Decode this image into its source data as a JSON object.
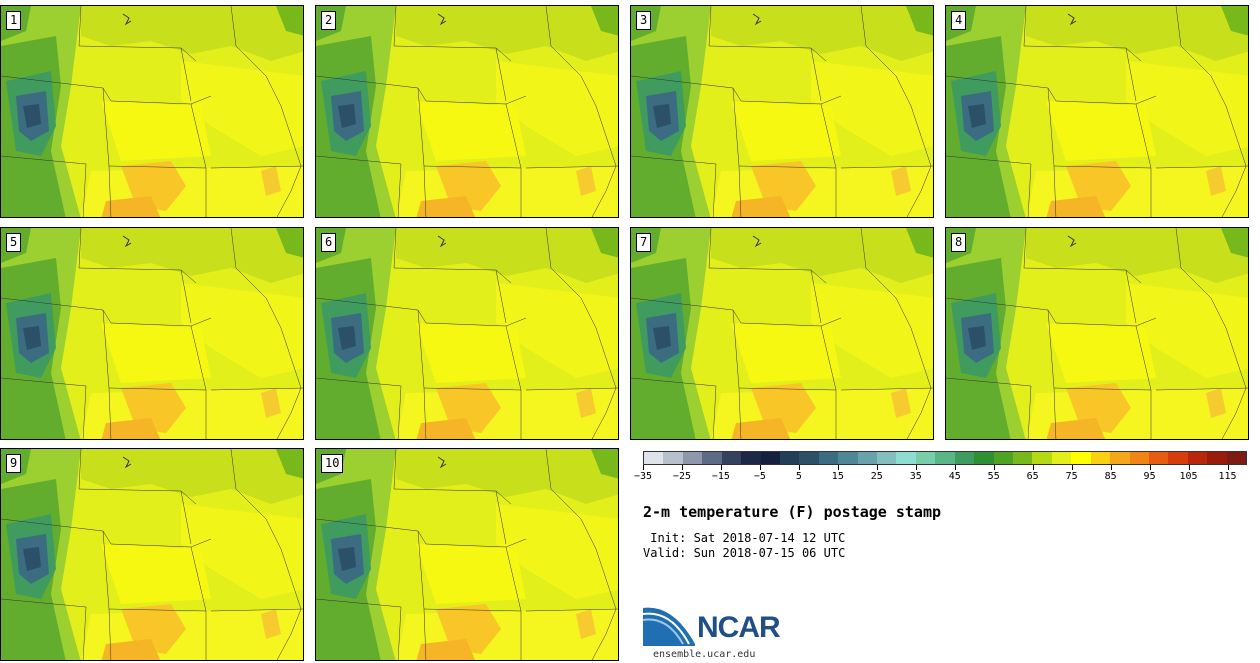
{
  "stamps": [
    "1",
    "2",
    "3",
    "4",
    "5",
    "6",
    "7",
    "8",
    "9",
    "10"
  ],
  "colorbar": {
    "colors": [
      "#dfe3ea",
      "#b8c0cc",
      "#8d98ab",
      "#5e6b85",
      "#35415e",
      "#1d2747",
      "#13213e",
      "#233f58",
      "#2b5068",
      "#3c6c82",
      "#4f8796",
      "#69a2aa",
      "#84bfbe",
      "#8fdcd0",
      "#79cda9",
      "#5bb686",
      "#3f9c5e",
      "#2e8f33",
      "#4ea324",
      "#77b81a",
      "#b5d912",
      "#e3ef1a",
      "#ffff00",
      "#fcd012",
      "#f5a817",
      "#f08515",
      "#e85c12",
      "#d63c0c",
      "#b8260c",
      "#9c1c0c",
      "#7c1c12"
    ],
    "tick_labels": [
      "−35",
      "−25",
      "−15",
      "−5",
      "5",
      "15",
      "25",
      "35",
      "45",
      "55",
      "65",
      "75",
      "85",
      "95",
      "105",
      "115"
    ]
  },
  "title": "2-m temperature (F) postage stamp",
  "init": " Init: Sat 2018-07-14 12 UTC",
  "valid": "Valid: Sun 2018-07-15 06 UTC",
  "logo_text": "NCAR",
  "site": "ensemble.ucar.edu"
}
